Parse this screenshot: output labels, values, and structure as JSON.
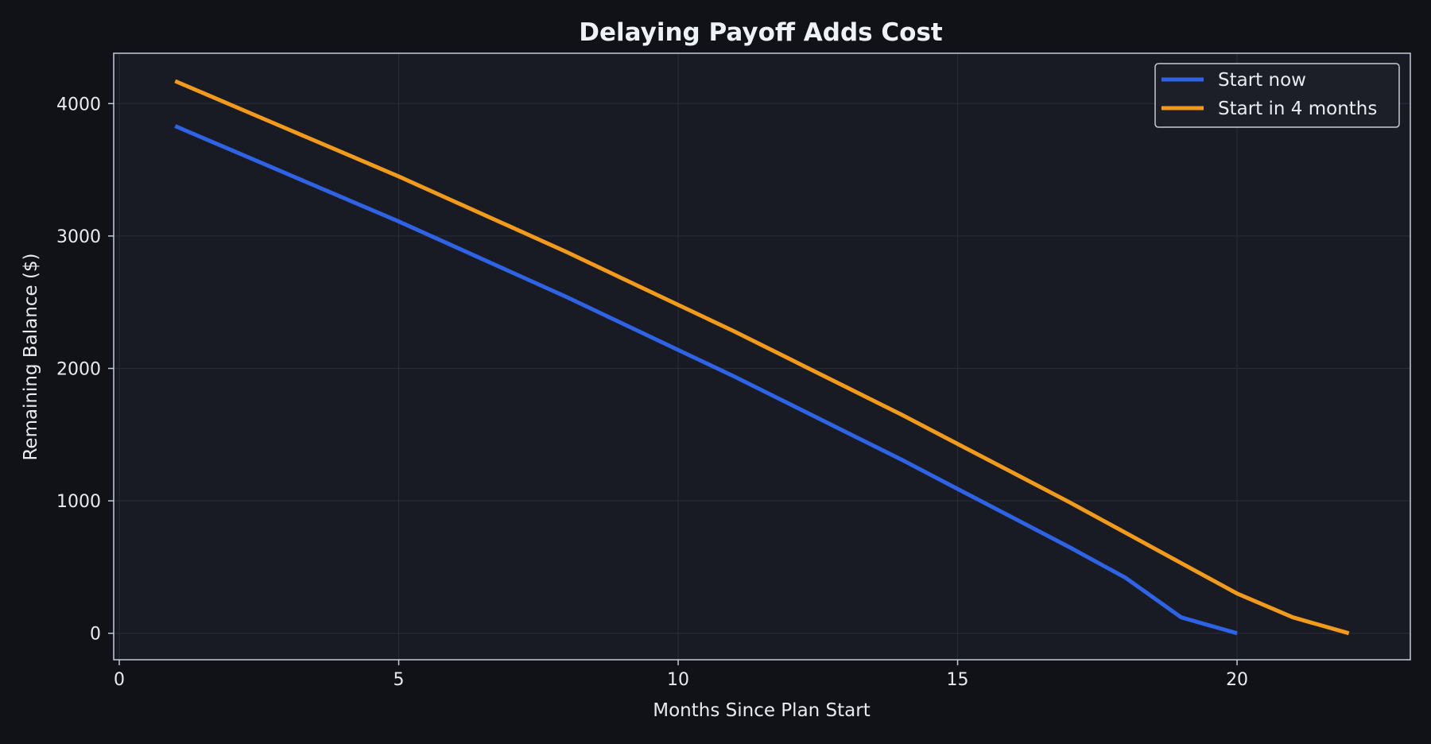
{
  "chart_data": {
    "type": "line",
    "title": "Delaying Payoff Adds Cost",
    "xlabel": "Months Since Plan Start",
    "ylabel": "Remaining Balance ($)",
    "xlim": [
      -0.1,
      23.1
    ],
    "ylim": [
      -200,
      4380
    ],
    "xticks": [
      0,
      5,
      10,
      15,
      20
    ],
    "yticks": [
      0,
      1000,
      2000,
      3000,
      4000
    ],
    "grid": true,
    "legend_position": "top-right",
    "series": [
      {
        "name": "Start now",
        "color": "#2f63e6",
        "x": [
          1,
          2,
          3,
          4,
          5,
          6,
          7,
          8,
          9,
          10,
          11,
          12,
          13,
          14,
          15,
          16,
          17,
          18,
          19,
          20
        ],
        "values": [
          3830,
          3650,
          3470,
          3290,
          3110,
          2920,
          2730,
          2540,
          2340,
          2140,
          1940,
          1730,
          1520,
          1310,
          1090,
          870,
          650,
          420,
          120,
          0
        ]
      },
      {
        "name": "Start in 4 months",
        "color": "#f29a1c",
        "x": [
          1,
          2,
          3,
          4,
          5,
          6,
          7,
          8,
          9,
          10,
          11,
          12,
          13,
          14,
          15,
          16,
          17,
          18,
          19,
          20,
          21,
          22
        ],
        "values": [
          4170,
          3990,
          3810,
          3630,
          3450,
          3260,
          3070,
          2880,
          2680,
          2480,
          2280,
          2070,
          1860,
          1650,
          1430,
          1210,
          990,
          760,
          530,
          300,
          120,
          0
        ]
      }
    ]
  },
  "colors": {
    "page_background": "#101217",
    "plot_background": "#191b24",
    "plot_border": "#c3cbd6",
    "grid": "#2a2e3b",
    "text": "#e8ebf0"
  }
}
